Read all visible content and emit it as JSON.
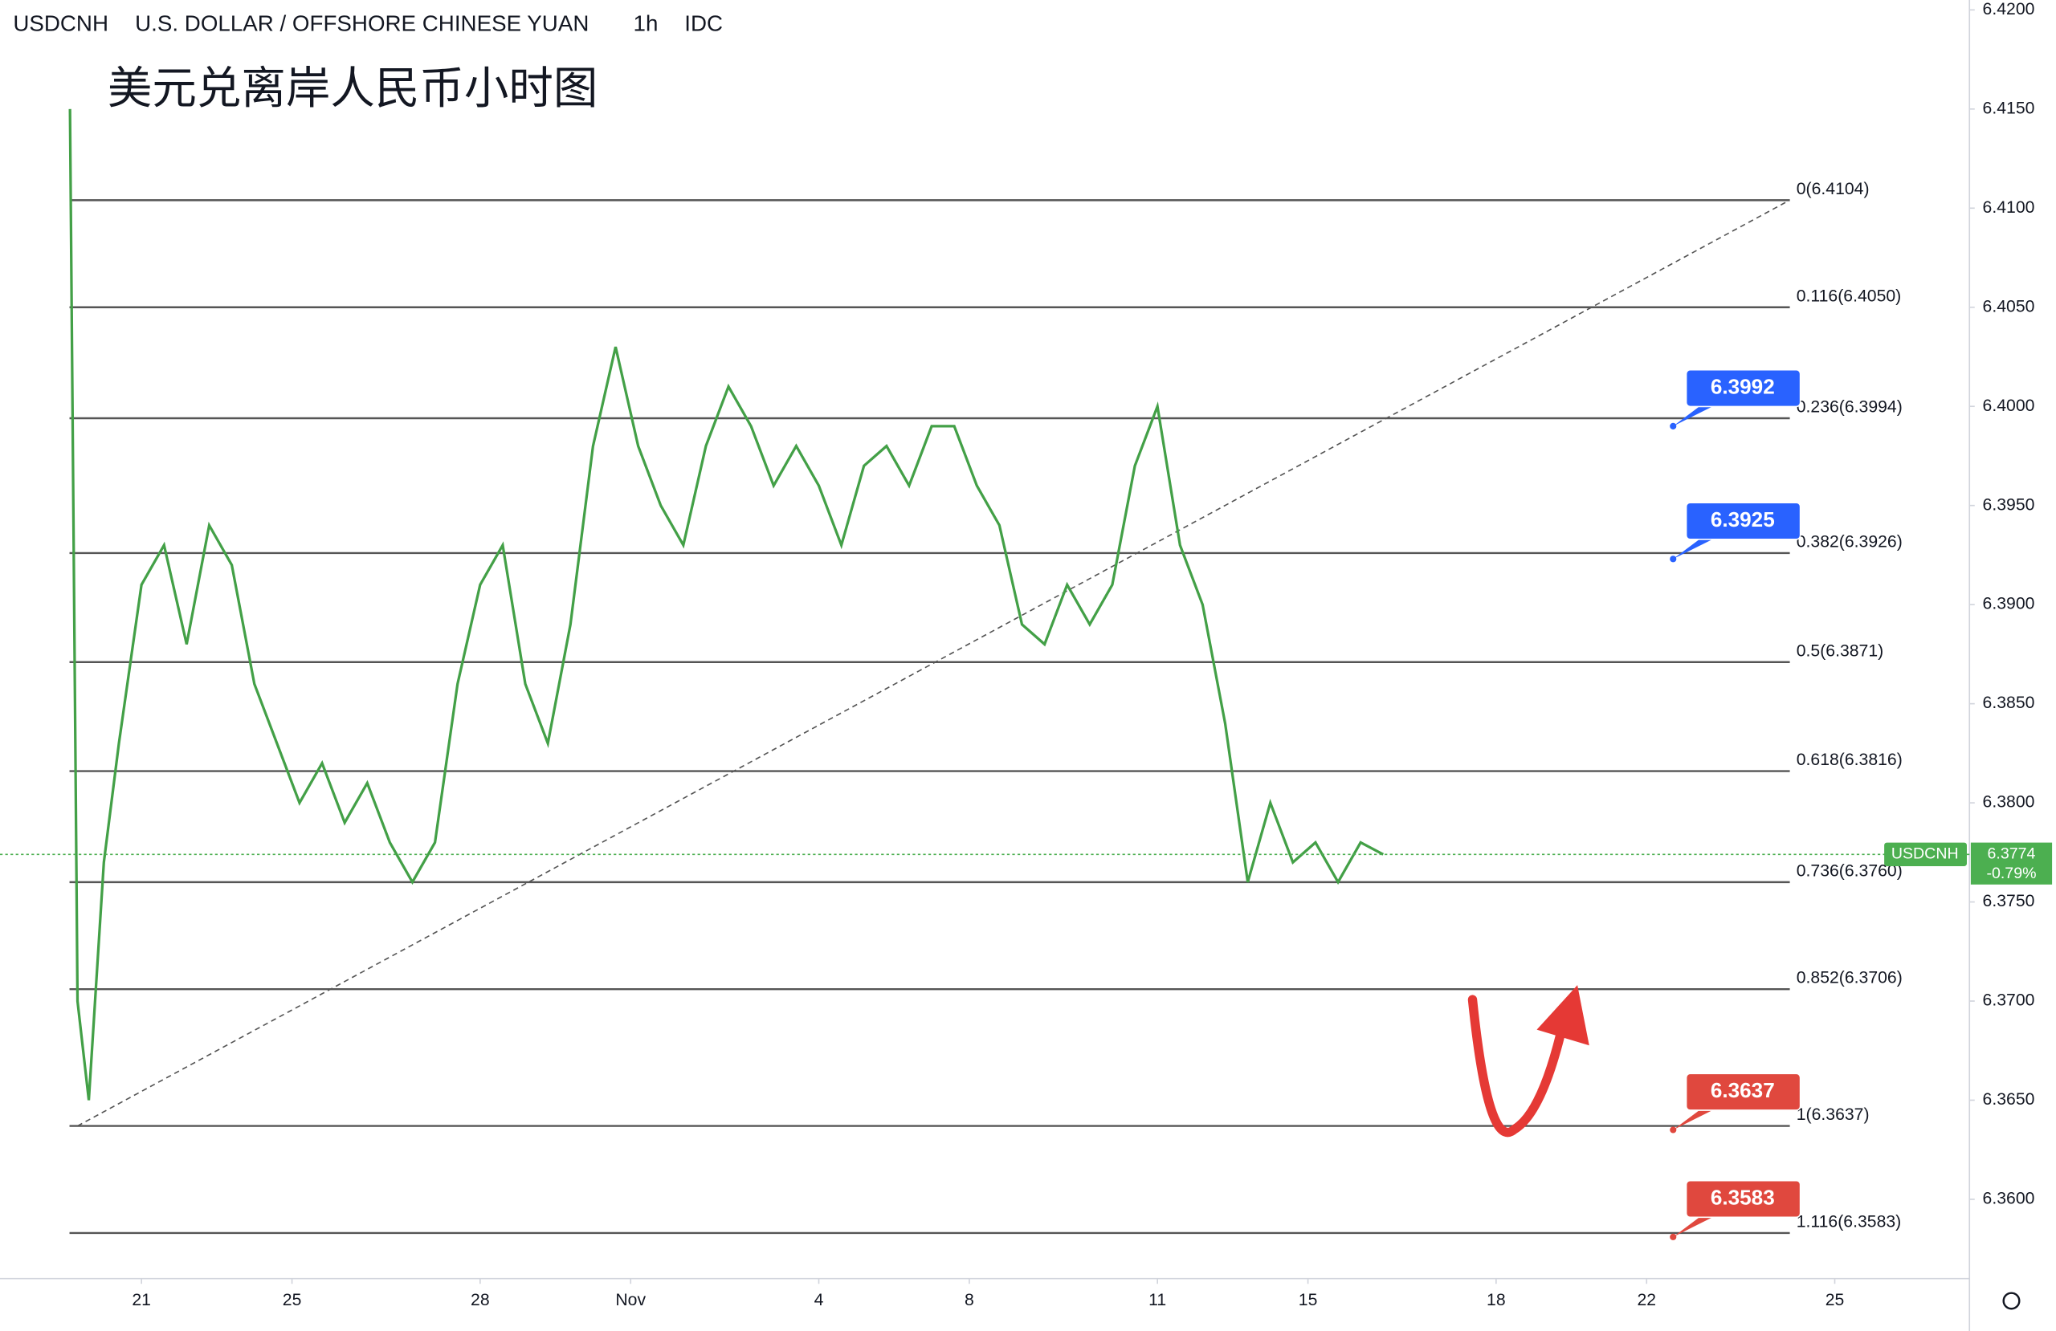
{
  "chart_data": {
    "type": "line",
    "symbol": "USDCNH",
    "description": "U.S. DOLLAR / OFFSHORE CHINESE YUAN",
    "interval": "1h",
    "source": "IDC",
    "title": "美元兑离岸人民币小时图",
    "xlim": [
      -1.88,
      24.29
    ],
    "xticks": [
      {
        "value": 0,
        "label": "21"
      },
      {
        "value": 2,
        "label": "25"
      },
      {
        "value": 4.5,
        "label": "28"
      },
      {
        "value": 6.5,
        "label": "Nov"
      },
      {
        "value": 9,
        "label": "4"
      },
      {
        "value": 11,
        "label": "8"
      },
      {
        "value": 13.5,
        "label": "11"
      },
      {
        "value": 15.5,
        "label": "15"
      },
      {
        "value": 18,
        "label": "18"
      },
      {
        "value": 20,
        "label": "22"
      },
      {
        "value": 22.5,
        "label": "25"
      }
    ],
    "ylim": [
      6.356,
      6.4205
    ],
    "yticks": [
      {
        "value": 6.42,
        "label": "6.4200"
      },
      {
        "value": 6.415,
        "label": "6.4150"
      },
      {
        "value": 6.41,
        "label": "6.4100"
      },
      {
        "value": 6.405,
        "label": "6.4050"
      },
      {
        "value": 6.4,
        "label": "6.4000"
      },
      {
        "value": 6.395,
        "label": "6.3950"
      },
      {
        "value": 6.39,
        "label": "6.3900"
      },
      {
        "value": 6.385,
        "label": "6.3850"
      },
      {
        "value": 6.38,
        "label": "6.3800"
      },
      {
        "value": 6.375,
        "label": "6.3750"
      },
      {
        "value": 6.37,
        "label": "6.3700"
      },
      {
        "value": 6.365,
        "label": "6.3650"
      },
      {
        "value": 6.36,
        "label": "6.3600"
      }
    ],
    "series": [
      {
        "name": "USDCNH",
        "color": "#43a047",
        "x": [
          -0.95,
          -0.85,
          -0.7,
          -0.5,
          -0.3,
          0,
          0.3,
          0.6,
          0.9,
          1.2,
          1.5,
          1.8,
          2.1,
          2.4,
          2.7,
          3.0,
          3.3,
          3.6,
          3.9,
          4.2,
          4.5,
          4.8,
          5.1,
          5.4,
          5.7,
          6.0,
          6.3,
          6.6,
          6.9,
          7.2,
          7.5,
          7.8,
          8.1,
          8.4,
          8.7,
          9.0,
          9.3,
          9.6,
          9.9,
          10.2,
          10.5,
          10.8,
          11.1,
          11.4,
          11.7,
          12.0,
          12.3,
          12.6,
          12.9,
          13.2,
          13.5,
          13.8,
          14.1,
          14.4,
          14.7,
          15.0,
          15.3,
          15.6,
          15.9,
          16.2,
          16.5
        ],
        "values": [
          6.415,
          6.37,
          6.365,
          6.377,
          6.383,
          6.391,
          6.393,
          6.388,
          6.394,
          6.392,
          6.386,
          6.383,
          6.38,
          6.382,
          6.379,
          6.381,
          6.378,
          6.376,
          6.378,
          6.386,
          6.391,
          6.393,
          6.386,
          6.383,
          6.389,
          6.398,
          6.403,
          6.398,
          6.395,
          6.393,
          6.398,
          6.401,
          6.399,
          6.396,
          6.398,
          6.396,
          6.393,
          6.397,
          6.398,
          6.396,
          6.399,
          6.399,
          6.396,
          6.394,
          6.389,
          6.388,
          6.391,
          6.389,
          6.391,
          6.397,
          6.4,
          6.393,
          6.39,
          6.384,
          6.376,
          6.38,
          6.377,
          6.378,
          6.376,
          6.378,
          6.3774
        ]
      }
    ],
    "trendline": {
      "x": [
        -0.85,
        21.9
      ],
      "values": [
        6.3637,
        6.4104
      ]
    },
    "fib_levels": [
      {
        "value": 6.4104,
        "label": "0(6.4104)"
      },
      {
        "value": 6.405,
        "label": "0.116(6.4050)"
      },
      {
        "value": 6.3994,
        "label": "0.236(6.3994)"
      },
      {
        "value": 6.3926,
        "label": "0.382(6.3926)"
      },
      {
        "value": 6.3871,
        "label": "0.5(6.3871)"
      },
      {
        "value": 6.3816,
        "label": "0.618(6.3816)"
      },
      {
        "value": 6.376,
        "label": "0.736(6.3760)"
      },
      {
        "value": 6.3706,
        "label": "0.852(6.3706)"
      },
      {
        "value": 6.3637,
        "label": "1(6.3637)"
      },
      {
        "value": 6.3583,
        "label": "1.116(6.3583)"
      }
    ],
    "price_marks": [
      {
        "value": 6.3992,
        "label": "6.3992",
        "color": "#2962ff"
      },
      {
        "value": 6.3925,
        "label": "6.3925",
        "color": "#2962ff"
      },
      {
        "value": 6.3637,
        "label": "6.3637",
        "color": "#e0483e"
      },
      {
        "value": 6.3583,
        "label": "6.3583",
        "color": "#e0483e"
      }
    ],
    "last_price": {
      "value": 6.3774,
      "label": "6.3774",
      "change": "-0.79%",
      "color": "#4caf50"
    }
  }
}
